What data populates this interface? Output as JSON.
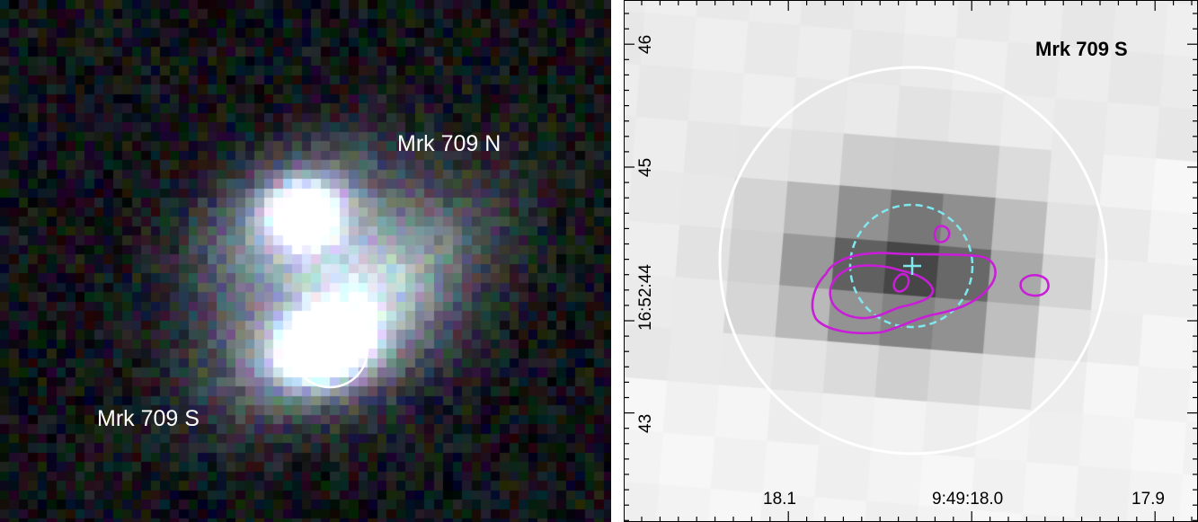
{
  "left_panel": {
    "label_north": "Mrk 709 N",
    "label_south": "Mrk 709 S",
    "aperture_color": "#ffffff"
  },
  "right_panel": {
    "title": "Mrk 709 S",
    "x_ticks": [
      "18.1",
      "9:49:18.0",
      "17.9"
    ],
    "y_ticks": [
      "46",
      "45",
      "16:52:44",
      "43"
    ],
    "aperture_color": "#ffffff",
    "error_circle_color": "#7fe8ee",
    "contour_color": "#c81ed8",
    "cross_color": "#7fe8ee"
  }
}
